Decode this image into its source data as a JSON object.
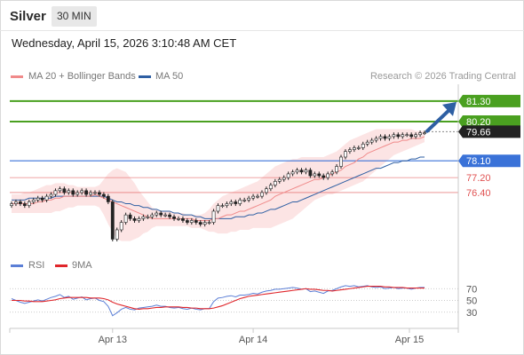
{
  "header": {
    "instrument": "Silver",
    "timeframe": "30 MIN",
    "datetime": "Wednesday, April 15, 2026 3:10:48 AM CET"
  },
  "legend": {
    "ma20": {
      "label": "MA 20 + Bollinger Bands",
      "color": "#f08a8a"
    },
    "ma50": {
      "label": "MA 50",
      "color": "#2e5fa3"
    },
    "source": "Research © 2026 Trading Central"
  },
  "rsi_legend": {
    "rsi": {
      "label": "RSI",
      "color": "#5b7fd6"
    },
    "ma9": {
      "label": "9MA",
      "color": "#e0262b"
    }
  },
  "chart_data": [
    {
      "type": "candlestick",
      "ylim": [
        73.4,
        82.2
      ],
      "x_tick_labels": [
        "Apr 13",
        "Apr 14",
        "Apr 15"
      ],
      "levels": [
        {
          "label": "81.30",
          "value": 81.3,
          "color": "#4aa020",
          "style": "target"
        },
        {
          "label": "80.20",
          "value": 80.2,
          "color": "#4aa020",
          "style": "target"
        },
        {
          "label": "79.66",
          "value": 79.66,
          "color": "#222222",
          "style": "last"
        },
        {
          "label": "78.10",
          "value": 78.1,
          "color": "#3a72d8",
          "style": "pivot"
        },
        {
          "label": "77.20",
          "value": 77.2,
          "color": "#e05252",
          "style": "support"
        },
        {
          "label": "76.40",
          "value": 76.4,
          "color": "#e05252",
          "style": "support"
        }
      ],
      "close": [
        75.8,
        75.9,
        75.8,
        75.7,
        75.9,
        76.0,
        76.1,
        76.0,
        76.2,
        76.3,
        76.5,
        76.6,
        76.4,
        76.5,
        76.3,
        76.4,
        76.5,
        76.3,
        76.4,
        76.4,
        76.3,
        76.2,
        75.9,
        73.9,
        74.4,
        74.8,
        75.2,
        75.0,
        74.9,
        75.0,
        75.1,
        75.1,
        75.2,
        75.3,
        75.2,
        75.2,
        75.1,
        75.0,
        75.0,
        74.9,
        74.8,
        74.9,
        74.8,
        74.7,
        74.8,
        74.8,
        75.4,
        75.7,
        75.7,
        75.8,
        75.9,
        75.8,
        76.0,
        76.0,
        76.1,
        76.2,
        76.2,
        76.4,
        76.6,
        76.8,
        77.0,
        77.1,
        77.2,
        77.4,
        77.5,
        77.6,
        77.5,
        77.6,
        77.3,
        77.4,
        77.3,
        77.2,
        77.4,
        77.5,
        77.8,
        78.3,
        78.6,
        78.7,
        78.8,
        78.8,
        79.0,
        79.1,
        79.2,
        79.3,
        79.4,
        79.3,
        79.4,
        79.5,
        79.4,
        79.5,
        79.5,
        79.4,
        79.5,
        79.6,
        79.6
      ],
      "ma20": [
        75.8,
        75.8,
        75.8,
        75.8,
        75.8,
        75.8,
        75.9,
        75.9,
        76.0,
        76.0,
        76.1,
        76.1,
        76.2,
        76.2,
        76.2,
        76.2,
        76.2,
        76.2,
        76.2,
        76.3,
        76.2,
        76.1,
        76.0,
        75.9,
        75.8,
        75.7,
        75.6,
        75.5,
        75.4,
        75.3,
        75.2,
        75.1,
        75.0,
        75.0,
        75.0,
        75.0,
        75.0,
        75.0,
        75.0,
        75.0,
        75.0,
        75.0,
        74.9,
        74.9,
        74.9,
        74.9,
        75.0,
        75.0,
        75.1,
        75.2,
        75.2,
        75.3,
        75.4,
        75.4,
        75.5,
        75.6,
        75.7,
        75.8,
        75.9,
        76.0,
        76.2,
        76.3,
        76.4,
        76.5,
        76.6,
        76.7,
        76.8,
        76.9,
        77.0,
        77.1,
        77.1,
        77.2,
        77.3,
        77.4,
        77.5,
        77.6,
        77.8,
        77.9,
        78.0,
        78.2,
        78.3,
        78.5,
        78.6,
        78.7,
        78.8,
        78.9,
        79.0,
        79.1,
        79.1,
        79.2,
        79.2,
        79.3,
        79.3,
        79.3,
        79.4
      ],
      "ma50": [
        76.0,
        76.0,
        76.0,
        76.0,
        76.1,
        76.1,
        76.1,
        76.1,
        76.1,
        76.1,
        76.2,
        76.2,
        76.2,
        76.2,
        76.2,
        76.2,
        76.2,
        76.2,
        76.2,
        76.2,
        76.2,
        76.2,
        76.1,
        76.0,
        75.9,
        75.9,
        75.8,
        75.8,
        75.7,
        75.7,
        75.6,
        75.6,
        75.5,
        75.5,
        75.4,
        75.4,
        75.4,
        75.3,
        75.3,
        75.2,
        75.2,
        75.2,
        75.1,
        75.1,
        75.0,
        75.0,
        75.0,
        75.0,
        75.0,
        75.0,
        75.0,
        75.1,
        75.1,
        75.1,
        75.2,
        75.2,
        75.3,
        75.3,
        75.4,
        75.5,
        75.5,
        75.6,
        75.7,
        75.8,
        75.9,
        75.9,
        76.0,
        76.1,
        76.2,
        76.3,
        76.4,
        76.5,
        76.6,
        76.7,
        76.8,
        76.9,
        77.0,
        77.1,
        77.2,
        77.3,
        77.4,
        77.5,
        77.6,
        77.7,
        77.7,
        77.8,
        77.9,
        78.0,
        78.0,
        78.1,
        78.1,
        78.2,
        78.2,
        78.3,
        78.3
      ],
      "bb_upper": [
        76.3,
        76.3,
        76.3,
        76.4,
        76.4,
        76.5,
        76.6,
        76.7,
        76.8,
        76.8,
        76.9,
        76.9,
        76.9,
        76.8,
        76.8,
        76.7,
        76.7,
        76.7,
        76.7,
        76.7,
        76.8,
        77.1,
        77.4,
        77.6,
        77.7,
        77.6,
        77.5,
        77.2,
        76.9,
        76.5,
        76.2,
        75.9,
        75.6,
        75.5,
        75.4,
        75.4,
        75.4,
        75.3,
        75.3,
        75.3,
        75.2,
        75.2,
        75.2,
        75.2,
        75.3,
        75.5,
        75.8,
        76.0,
        76.2,
        76.3,
        76.4,
        76.5,
        76.6,
        76.7,
        76.8,
        76.9,
        77.0,
        77.2,
        77.4,
        77.6,
        77.8,
        77.9,
        78.0,
        78.1,
        78.2,
        78.2,
        78.3,
        78.3,
        78.3,
        78.3,
        78.3,
        78.3,
        78.4,
        78.5,
        78.6,
        78.8,
        79.0,
        79.2,
        79.3,
        79.4,
        79.5,
        79.6,
        79.7,
        79.8,
        79.8,
        79.8,
        79.8,
        79.8,
        79.8,
        79.8,
        79.8,
        79.8,
        79.7,
        79.7,
        79.7
      ],
      "bb_lower": [
        75.3,
        75.3,
        75.3,
        75.3,
        75.3,
        75.3,
        75.3,
        75.3,
        75.3,
        75.3,
        75.4,
        75.4,
        75.5,
        75.6,
        75.6,
        75.7,
        75.7,
        75.7,
        75.7,
        75.7,
        75.6,
        75.2,
        74.7,
        74.3,
        73.9,
        73.8,
        73.8,
        73.8,
        73.9,
        74.0,
        74.2,
        74.3,
        74.5,
        74.6,
        74.6,
        74.6,
        74.6,
        74.6,
        74.6,
        74.6,
        74.6,
        74.5,
        74.5,
        74.5,
        74.4,
        74.3,
        74.3,
        74.2,
        74.2,
        74.2,
        74.3,
        74.3,
        74.4,
        74.4,
        74.4,
        74.5,
        74.5,
        74.5,
        74.5,
        74.5,
        74.6,
        74.7,
        74.8,
        74.9,
        75.0,
        75.2,
        75.4,
        75.6,
        75.8,
        76.0,
        76.1,
        76.2,
        76.3,
        76.3,
        76.4,
        76.5,
        76.6,
        76.7,
        76.8,
        76.9,
        77.0,
        77.2,
        77.4,
        77.6,
        77.8,
        78.0,
        78.2,
        78.4,
        78.5,
        78.6,
        78.7,
        78.8,
        78.9,
        79.0,
        79.1
      ]
    },
    {
      "type": "line",
      "ylim": [
        10,
        90
      ],
      "y_ticks": [
        70,
        50,
        30
      ],
      "series": [
        {
          "name": "RSI",
          "values": [
            53,
            50,
            47,
            45,
            47,
            49,
            51,
            49,
            52,
            55,
            57,
            60,
            55,
            57,
            52,
            54,
            56,
            51,
            53,
            54,
            50,
            48,
            40,
            24,
            29,
            35,
            38,
            35,
            34,
            37,
            38,
            39,
            40,
            42,
            40,
            40,
            38,
            37,
            38,
            36,
            35,
            37,
            35,
            34,
            36,
            36,
            48,
            54,
            55,
            57,
            58,
            56,
            59,
            59,
            60,
            62,
            61,
            64,
            66,
            67,
            69,
            69,
            70,
            71,
            72,
            71,
            69,
            70,
            65,
            66,
            64,
            62,
            66,
            67,
            70,
            73,
            75,
            74,
            75,
            73,
            74,
            75,
            73,
            72,
            73,
            70,
            71,
            72,
            70,
            71,
            71,
            69,
            71,
            72,
            72
          ]
        },
        {
          "name": "9MA",
          "values": [
            50,
            50,
            50,
            49,
            49,
            48,
            48,
            48,
            49,
            50,
            51,
            53,
            54,
            55,
            55,
            55,
            55,
            55,
            54,
            54,
            54,
            53,
            51,
            47,
            44,
            42,
            40,
            38,
            36,
            35,
            36,
            36,
            37,
            38,
            38,
            39,
            39,
            39,
            39,
            38,
            38,
            37,
            37,
            36,
            36,
            36,
            37,
            39,
            41,
            44,
            47,
            50,
            53,
            55,
            57,
            58,
            59,
            60,
            61,
            62,
            63,
            64,
            65,
            66,
            67,
            68,
            69,
            70,
            69,
            69,
            68,
            67,
            67,
            66,
            67,
            68,
            69,
            70,
            71,
            72,
            73,
            74,
            74,
            74,
            74,
            73,
            73,
            72,
            72,
            72,
            71,
            71,
            71,
            71,
            71
          ]
        }
      ]
    }
  ]
}
